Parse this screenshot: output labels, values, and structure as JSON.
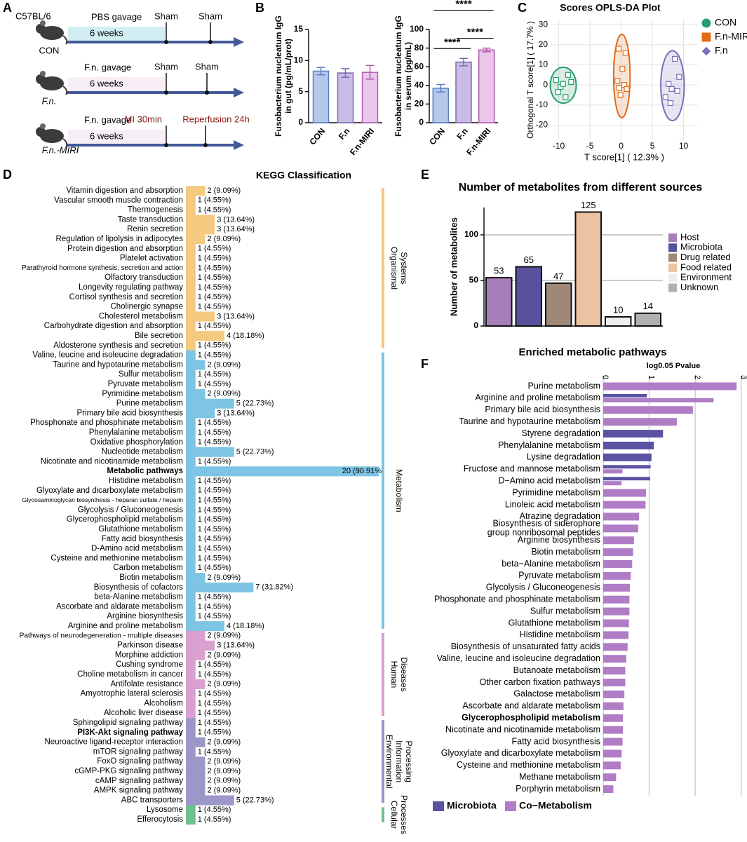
{
  "schematic": {
    "label": "A",
    "strain": "C57BL/6",
    "groups": [
      {
        "name": "CON",
        "treatment": "PBS gavage",
        "duration": "6 weeks",
        "events": [
          "Sham",
          "Sham"
        ]
      },
      {
        "name": "F.n.",
        "treatment": "F.n. gavage",
        "duration": "6 weeks",
        "events": [
          "Sham",
          "Sham"
        ]
      },
      {
        "name": "F.n.-MIRI",
        "treatment": "F.n. gavage",
        "duration": "6 weeks",
        "events": [
          "MI 30min",
          "Reperfusion 24h"
        ],
        "event_color": "#8b1a1a"
      }
    ]
  },
  "chart_data": [
    {
      "type": "bar",
      "label": "B",
      "ylabel": [
        "Fusobacterium nucleatum IgG",
        "in gut (pg/mL/prot)"
      ],
      "categories": [
        "CON",
        "F.n",
        "F.n-MIRI"
      ],
      "values": [
        8.3,
        8.0,
        8.1
      ],
      "errors": [
        0.6,
        0.7,
        1.1
      ],
      "colors": [
        "#b4c8ea",
        "#c9bde6",
        "#e9c6ea"
      ],
      "edge_colors": [
        "#5a7fc4",
        "#7b68b8",
        "#b05ab0"
      ],
      "ylim": [
        0,
        15
      ],
      "yticks": [
        0,
        5,
        10,
        15
      ]
    },
    {
      "type": "bar",
      "ylabel": [
        "Fusobacterium nucleatum IgG",
        "in serum (pg/mL)"
      ],
      "categories": [
        "CON",
        "F.n",
        "F.n-MIRI"
      ],
      "values": [
        37,
        65,
        78
      ],
      "errors": [
        4,
        4,
        2
      ],
      "colors": [
        "#b4c8ea",
        "#c9bde6",
        "#e9c6ea"
      ],
      "edge_colors": [
        "#5a7fc4",
        "#7b68b8",
        "#b05ab0"
      ],
      "ylim": [
        0,
        100
      ],
      "yticks": [
        0,
        20,
        40,
        60,
        80,
        100
      ],
      "annotations": [
        {
          "text": "****",
          "from": 0,
          "to": 1
        },
        {
          "text": "****",
          "from": 1,
          "to": 2
        },
        {
          "text": "****",
          "from": 0,
          "to": 2
        }
      ]
    },
    {
      "type": "scatter",
      "label": "C",
      "title": "Scores OPLS-DA Plot",
      "xlabel": "T score[1] ( 12.3% )",
      "ylabel": "Orthogonal T score[1] ( 17.7% )",
      "xlim": [
        -11.3,
        12.3
      ],
      "ylim": [
        -27.5,
        32.5
      ],
      "xticks": [
        -10,
        -5,
        0,
        5,
        10
      ],
      "yticks": [
        -20,
        -10,
        0,
        10,
        20,
        30
      ],
      "grid": true,
      "series": [
        {
          "name": "CON",
          "color": "#2a9d6e",
          "marker": "circle",
          "x": [
            -10.4,
            -9.7,
            -10.1,
            -8.5,
            -8.0,
            -8.9,
            -9.3
          ],
          "y": [
            2.5,
            -1,
            -3.5,
            5,
            1.5,
            -6,
            0.5
          ]
        },
        {
          "name": "F.n-MIRI",
          "color": "#e06c1a",
          "marker": "square",
          "x": [
            -0.4,
            0.7,
            0.2,
            -0.6,
            0.5,
            -0.3,
            0.9,
            -0.1
          ],
          "y": [
            18,
            16,
            8,
            2,
            0,
            -1.5,
            -2,
            -5
          ]
        },
        {
          "name": "F.n",
          "color": "#7b6fb8",
          "marker": "diamond",
          "x": [
            8.6,
            9.3,
            7.6,
            8.1,
            9.0,
            7.1,
            7.9
          ],
          "y": [
            13,
            4,
            0.5,
            -2,
            -3,
            -6,
            -9
          ]
        }
      ]
    },
    {
      "type": "hbar",
      "label": "D",
      "title": "KEGG Classification",
      "xlim": [
        0,
        20
      ],
      "groups": [
        {
          "name": [
            "Organismal",
            "Systems"
          ],
          "color": "#f5c97f",
          "categories": [
            "Vitamin digestion and absorption",
            "Vascular smooth muscle contraction",
            "Thermogenesis",
            "Taste transduction",
            "Renin secretion",
            "Regulation of lipolysis in adipocytes",
            "Protein digestion and absorption",
            "Platelet activation",
            "Parathyroid hormone synthesis, secretion and action",
            "Olfactory transduction",
            "Longevity regulating pathway",
            "Cortisol synthesis and secretion",
            "Cholinergic synapse",
            "Cholesterol metabolism",
            "Carbohydrate digestion and absorption",
            "Bile secretion",
            "Aldosterone synthesis and secretion"
          ],
          "values": [
            2,
            1,
            1,
            3,
            3,
            2,
            1,
            1,
            1,
            1,
            1,
            1,
            1,
            3,
            1,
            4,
            1
          ],
          "value_labels": [
            "2 (9.09%)",
            "1 (4.55%)",
            "1 (4.55%)",
            "3 (13.64%)",
            "3 (13.64%)",
            "2 (9.09%)",
            "1 (4.55%)",
            "1 (4.55%)",
            "1 (4.55%)",
            "1 (4.55%)",
            "1 (4.55%)",
            "1 (4.55%)",
            "1 (4.55%)",
            "3 (13.64%)",
            "1 (4.55%)",
            "4 (18.18%)",
            "1 (4.55%)"
          ]
        },
        {
          "name": [
            "Metabolism"
          ],
          "color": "#7ec4e4",
          "bold": [
            12
          ],
          "categories": [
            "Valine, leucine and isoleucine degradation",
            "Taurine and hypotaurine metabolism",
            "Sulfur metabolism",
            "Pyruvate metabolism",
            "Pyrimidine metabolism",
            "Purine metabolism",
            "Primary bile acid biosynthesis",
            "Phosphonate and phosphinate metabolism",
            "Phenylalanine metabolism",
            "Oxidative phosphorylation",
            "Nucleotide metabolism",
            "Nicotinate and nicotinamide metabolism",
            "Metabolic pathways",
            "Histidine metabolism",
            "Glyoxylate and dicarboxylate metabolism",
            "Glycosaminoglycan biosynthesis - heparan sulfate / heparin",
            "Glycolysis / Gluconeogenesis",
            "Glycerophospholipid metabolism",
            "Glutathione metabolism",
            "Fatty acid biosynthesis",
            "D-Amino acid metabolism",
            "Cysteine and methionine metabolism",
            "Carbon metabolism",
            "Biotin metabolism",
            "Biosynthesis of cofactors",
            "beta-Alanine metabolism",
            "Ascorbate and aldarate metabolism",
            "Arginine biosynthesis",
            "Arginine and proline metabolism"
          ],
          "values": [
            1,
            2,
            1,
            1,
            2,
            5,
            3,
            1,
            1,
            1,
            5,
            1,
            20,
            1,
            1,
            1,
            1,
            1,
            1,
            1,
            1,
            1,
            1,
            2,
            7,
            1,
            1,
            1,
            4
          ],
          "value_labels": [
            "1 (4.55%)",
            "2 (9.09%)",
            "1 (4.55%)",
            "1 (4.55%)",
            "2 (9.09%)",
            "5 (22.73%)",
            "3 (13.64%)",
            "1 (4.55%)",
            "1 (4.55%)",
            "1 (4.55%)",
            "5 (22.73%)",
            "1 (4.55%)",
            "20 (90.91%",
            "1 (4.55%)",
            "1 (4.55%)",
            "1 (4.55%)",
            "1 (4.55%)",
            "1 (4.55%)",
            "1 (4.55%)",
            "1 (4.55%)",
            "1 (4.55%)",
            "1 (4.55%)",
            "1 (4.55%)",
            "2 (9.09%)",
            "7 (31.82%)",
            "1 (4.55%)",
            "1 (4.55%)",
            "1 (4.55%)",
            "4 (18.18%)"
          ]
        },
        {
          "name": [
            "Human",
            "Diseases"
          ],
          "color": "#d9a0d0",
          "categories": [
            "Pathways of neurodegeneration - multiple diseases",
            "Parkinson disease",
            "Morphine addiction",
            "Cushing syndrome",
            "Choline metabolism in cancer",
            "Antifolate resistance",
            "Amyotrophic lateral sclerosis",
            "Alcoholism",
            "Alcoholic liver disease"
          ],
          "values": [
            2,
            3,
            2,
            1,
            1,
            2,
            1,
            1,
            1
          ],
          "value_labels": [
            "2 (9.09%)",
            "3 (13.64%)",
            "2 (9.09%)",
            "1 (4.55%)",
            "1 (4.55%)",
            "2 (9.09%)",
            "1 (4.55%)",
            "1 (4.55%)",
            "1 (4.55%)"
          ]
        },
        {
          "name": [
            "Environmental",
            "Information",
            "Processing"
          ],
          "color": "#9b97c9",
          "bold": [
            1
          ],
          "categories": [
            "Sphingolipid signaling pathway",
            "PI3K-Akt signaling pathway",
            "Neuroactive ligand-receptor interaction",
            "mTOR signaling pathway",
            "FoxO signaling pathway",
            "cGMP-PKG signaling pathway",
            "cAMP signaling pathway",
            "AMPK signaling pathway",
            "ABC transporters"
          ],
          "values": [
            1,
            1,
            2,
            1,
            2,
            2,
            2,
            2,
            5
          ],
          "value_labels": [
            "1 (4.55%)",
            "1 (4.55%)",
            "2 (9.09%)",
            "1 (4.55%)",
            "2 (9.09%)",
            "2 (9.09%)",
            "2 (9.09%)",
            "2 (9.09%)",
            "5 (22.73%)"
          ]
        },
        {
          "name": [
            "Cellular",
            "Processes"
          ],
          "color": "#6fbf8e",
          "categories": [
            "Lysosome",
            "Efferocytosis"
          ],
          "values": [
            1,
            1
          ],
          "value_labels": [
            "1 (4.55%)",
            "1 (4.55%)"
          ]
        }
      ]
    },
    {
      "type": "bar",
      "label": "E",
      "title": "Number of metabolites from different sources",
      "ylabel": "Number of metabolites",
      "categories": [
        "Host",
        "Microbiota",
        "Drug related",
        "Food related",
        "Environment",
        "Unknown"
      ],
      "values": [
        53,
        65,
        47,
        125,
        10,
        14
      ],
      "colors": [
        "#a77fb8",
        "#58519b",
        "#a08878",
        "#ebc3a0",
        "#eeeeee",
        "#b0b0b0"
      ],
      "ylim": [
        0,
        130
      ],
      "yticks": [
        0,
        50,
        100
      ],
      "grid": true,
      "legend": "right"
    },
    {
      "type": "hbar_grouped",
      "label": "F",
      "title": "Enriched metabolic pathways",
      "xlabel": "log0.05 Pvalue",
      "xlim": [
        0,
        3.05
      ],
      "xticks": [
        0,
        1,
        2,
        3
      ],
      "grid": true,
      "legend": "bottom",
      "bold": [
        28
      ],
      "categories": [
        "Purine metabolism",
        "Arginine and proline metabolism",
        "Primary bile acid biosynthesis",
        "Taurine and hypotaurine metabolism",
        "Styrene degradation",
        "Phenylalanine metabolism",
        "Lysine degradation",
        "Fructose and mannose metabolism",
        "D−Amino acid metabolism",
        "Pyrimidine metabolism",
        "Linoleic acid metabolism",
        "Atrazine degradation",
        [
          "Biosynthesis of siderophore",
          "group nonribosomal peptides"
        ],
        "Arginine biosynthesis",
        "Biotin metabolism",
        "beta−Alanine metabolism",
        "Pyruvate metabolism",
        "Glycolysis / Gluconeogenesis",
        "Phosphonate and phosphinate metabolism",
        "Sulfur metabolism",
        "Glutathione metabolism",
        "Histidine metabolism",
        "Biosynthesis of unsaturated fatty acids",
        "Valine, leucine and isoleucine degradation",
        "Butanoate metabolism",
        "Other carbon fixation pathways",
        "Galactose metabolism",
        "Ascorbate and aldarate metabolism",
        "Glycerophospholipid metabolism",
        "Nicotinate and nicotinamide metabolism",
        "Fatty acid biosynthesis",
        "Glyoxylate and dicarboxylate metabolism",
        "Cysteine and methionine metabolism",
        "Methane metabolism",
        "Porphyrin metabolism"
      ],
      "series": [
        {
          "name": "Microbiota",
          "color": "#5a52a3",
          "values": [
            null,
            0.95,
            null,
            null,
            1.3,
            1.1,
            1.05,
            1.03,
            1.02,
            null,
            null,
            null,
            null,
            null,
            null,
            null,
            null,
            null,
            null,
            null,
            null,
            null,
            null,
            null,
            null,
            null,
            null,
            null,
            null,
            null,
            null,
            null,
            null,
            null,
            null
          ]
        },
        {
          "name": "Co−Metabolism",
          "color": "#b07cc6",
          "values": [
            2.9,
            2.4,
            1.95,
            1.6,
            null,
            null,
            null,
            0.42,
            0.4,
            0.93,
            0.92,
            0.78,
            0.76,
            0.67,
            0.65,
            0.63,
            0.6,
            0.58,
            0.57,
            0.57,
            0.56,
            0.55,
            0.53,
            0.5,
            0.48,
            0.48,
            0.46,
            0.44,
            0.43,
            0.43,
            0.42,
            0.4,
            0.38,
            0.28,
            0.22
          ]
        }
      ]
    }
  ]
}
